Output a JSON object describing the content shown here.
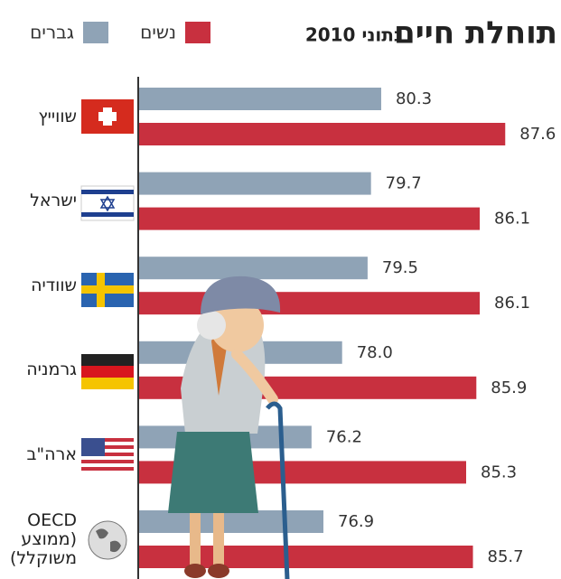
{
  "chart_data": {
    "type": "bar",
    "orientation": "horizontal",
    "title": "תוחלת חיים",
    "subtitle": "נתוני 2010",
    "categories": [
      "שווייץ",
      "ישראל",
      "שוודיה",
      "גרמניה",
      "ארה\"ב",
      "OECD (ממוצע משוקלל)"
    ],
    "series": [
      {
        "name": "גברים",
        "color": "#8fa3b6",
        "values": [
          80.3,
          79.7,
          79.5,
          78.0,
          76.2,
          76.9
        ],
        "value_labels": [
          "80.3",
          "79.7",
          "79.5",
          "78.0",
          "76.2",
          "76.9"
        ]
      },
      {
        "name": "נשים",
        "color": "#c8303f",
        "values": [
          87.6,
          86.1,
          86.1,
          85.9,
          85.3,
          85.7
        ]
      }
    ],
    "xlim": [
      66,
      89.5
    ]
  }
}
